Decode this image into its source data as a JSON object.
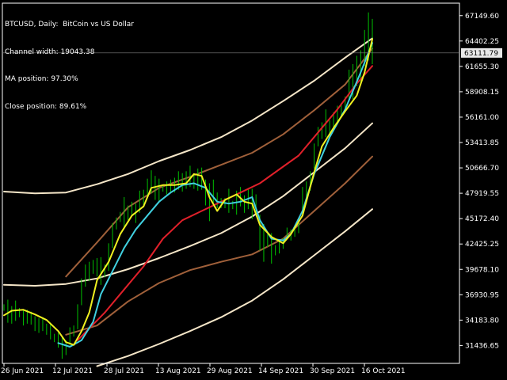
{
  "window": {
    "symbol_line": "BTCUSD, Daily:  BitCoin vs US Dollar",
    "channel_width": "Channel width: 19043.38",
    "ma_position": "MA position: 97.30%",
    "close_position": "Close position: 89.61%"
  },
  "colors": {
    "background": "#000000",
    "bars": "#00c000",
    "ma_red": "#e0202a",
    "smooth_cyan": "#40d0e0",
    "fast_yellow": "#f0f020",
    "outer_band": "#f5e6c8",
    "inner_band": "#a0603a"
  },
  "chart_data": {
    "type": "line",
    "title": "BTCUSD, Daily:  BitCoin vs US Dollar",
    "ylim": [
      29500,
      68500
    ],
    "price_ticks": [
      "67149.60",
      "64402.25",
      "61655.30",
      "58908.15",
      "56161.00",
      "53413.85",
      "50666.70",
      "47919.55",
      "45172.40",
      "42425.25",
      "39678.10",
      "36930.95",
      "34183.80",
      "31436.65"
    ],
    "x_labels": [
      "26 Jun 2021",
      "12 Jul 2021",
      "28 Jul 2021",
      "13 Aug 2021",
      "29 Aug 2021",
      "14 Sep 2021",
      "30 Sep 2021",
      "16 Oct 2021"
    ],
    "current_price": "63111.79",
    "bars": [
      [
        35900,
        35200
      ],
      [
        36400,
        33900
      ],
      [
        35700,
        33800
      ],
      [
        36300,
        34100
      ],
      [
        35500,
        34500
      ],
      [
        35200,
        33600
      ],
      [
        35300,
        33800
      ],
      [
        35100,
        33700
      ],
      [
        34600,
        33000
      ],
      [
        34400,
        32800
      ],
      [
        34500,
        33000
      ],
      [
        33800,
        32600
      ],
      [
        33900,
        32100
      ],
      [
        32700,
        31800
      ],
      [
        32800,
        31200
      ],
      [
        32400,
        30000
      ],
      [
        32000,
        30400
      ],
      [
        33400,
        31500
      ],
      [
        33600,
        32400
      ],
      [
        35900,
        33200
      ],
      [
        38700,
        35800
      ],
      [
        40200,
        37800
      ],
      [
        40500,
        38400
      ],
      [
        40700,
        39200
      ],
      [
        40900,
        38900
      ],
      [
        41000,
        38000
      ],
      [
        40200,
        38800
      ],
      [
        42500,
        39500
      ],
      [
        44700,
        42000
      ],
      [
        45300,
        44000
      ],
      [
        45900,
        44800
      ],
      [
        47500,
        44200
      ],
      [
        46600,
        45000
      ],
      [
        47000,
        45600
      ],
      [
        46800,
        44700
      ],
      [
        48200,
        45800
      ],
      [
        48300,
        46400
      ],
      [
        49500,
        47600
      ],
      [
        50400,
        47900
      ],
      [
        49800,
        47200
      ],
      [
        49500,
        47000
      ],
      [
        48700,
        48100
      ],
      [
        49200,
        47800
      ],
      [
        49400,
        48100
      ],
      [
        49600,
        48000
      ],
      [
        50300,
        48300
      ],
      [
        50100,
        48100
      ],
      [
        50300,
        48400
      ],
      [
        50900,
        48600
      ],
      [
        49900,
        48400
      ],
      [
        50600,
        48200
      ],
      [
        50700,
        48300
      ],
      [
        49400,
        46600
      ],
      [
        49000,
        44900
      ],
      [
        49400,
        46900
      ],
      [
        48000,
        46300
      ],
      [
        47400,
        46300
      ],
      [
        47400,
        46300
      ],
      [
        48400,
        45800
      ],
      [
        47100,
        46200
      ],
      [
        48200,
        45600
      ],
      [
        48600,
        46500
      ],
      [
        47700,
        45800
      ],
      [
        48400,
        46200
      ],
      [
        48400,
        45100
      ],
      [
        47800,
        45600
      ],
      [
        45600,
        41700
      ],
      [
        44600,
        40500
      ],
      [
        43500,
        42100
      ],
      [
        43600,
        40300
      ],
      [
        42300,
        41200
      ],
      [
        42700,
        41400
      ],
      [
        43100,
        41900
      ],
      [
        44200,
        43000
      ],
      [
        44000,
        42800
      ],
      [
        44400,
        43200
      ],
      [
        45100,
        43600
      ],
      [
        48600,
        45500
      ],
      [
        49200,
        47000
      ],
      [
        50300,
        48200
      ],
      [
        53300,
        50600
      ],
      [
        55100,
        53000
      ],
      [
        55600,
        53800
      ],
      [
        57000,
        54000
      ],
      [
        55800,
        54400
      ],
      [
        56700,
        55100
      ],
      [
        57400,
        55400
      ],
      [
        57700,
        56100
      ],
      [
        58400,
        56900
      ],
      [
        61300,
        58100
      ],
      [
        61900,
        58100
      ],
      [
        62800,
        59500
      ],
      [
        63400,
        60000
      ],
      [
        65600,
        61700
      ],
      [
        67500,
        62300
      ],
      [
        66800,
        61900
      ]
    ],
    "series": [
      {
        "name": "ma_red",
        "color": "#e0202a",
        "points": [
          [
            19,
            32000
          ],
          [
            26,
            35000
          ],
          [
            31,
            37500
          ],
          [
            36,
            40000
          ],
          [
            41,
            43000
          ],
          [
            46,
            45000
          ],
          [
            51,
            46000
          ],
          [
            56,
            47000
          ],
          [
            61,
            48000
          ],
          [
            66,
            49000
          ],
          [
            71,
            50500
          ],
          [
            76,
            52000
          ],
          [
            81,
            54500
          ],
          [
            86,
            57000
          ],
          [
            91,
            59800
          ],
          [
            95,
            61700
          ]
        ]
      },
      {
        "name": "smooth_cyan",
        "color": "#40d0e0",
        "points": [
          [
            14,
            31700
          ],
          [
            17,
            31300
          ],
          [
            20,
            32000
          ],
          [
            23,
            34000
          ],
          [
            25,
            37000
          ],
          [
            28,
            39500
          ],
          [
            31,
            42000
          ],
          [
            34,
            44000
          ],
          [
            37,
            45500
          ],
          [
            40,
            47000
          ],
          [
            43,
            48000
          ],
          [
            46,
            48800
          ],
          [
            49,
            49000
          ],
          [
            52,
            48500
          ],
          [
            55,
            47000
          ],
          [
            58,
            46800
          ],
          [
            61,
            47000
          ],
          [
            64,
            47500
          ],
          [
            66,
            45000
          ],
          [
            69,
            43000
          ],
          [
            72,
            42800
          ],
          [
            74,
            43500
          ],
          [
            77,
            46000
          ],
          [
            80,
            50000
          ],
          [
            84,
            54000
          ],
          [
            88,
            57000
          ],
          [
            92,
            61000
          ],
          [
            95,
            64200
          ]
        ]
      },
      {
        "name": "fast_yellow",
        "color": "#f0f020",
        "points": [
          [
            0,
            34700
          ],
          [
            2,
            35200
          ],
          [
            5,
            35300
          ],
          [
            8,
            34800
          ],
          [
            11,
            34200
          ],
          [
            14,
            33000
          ],
          [
            16,
            31800
          ],
          [
            18,
            31500
          ],
          [
            20,
            33000
          ],
          [
            22,
            35000
          ],
          [
            24,
            38500
          ],
          [
            27,
            40500
          ],
          [
            30,
            43500
          ],
          [
            33,
            45500
          ],
          [
            36,
            46500
          ],
          [
            38,
            48500
          ],
          [
            41,
            48800
          ],
          [
            44,
            48800
          ],
          [
            47,
            49000
          ],
          [
            49,
            50000
          ],
          [
            51,
            49800
          ],
          [
            53,
            47500
          ],
          [
            55,
            46000
          ],
          [
            57,
            47200
          ],
          [
            60,
            47800
          ],
          [
            62,
            47000
          ],
          [
            64,
            46800
          ],
          [
            66,
            44500
          ],
          [
            69,
            43200
          ],
          [
            72,
            42500
          ],
          [
            74,
            43500
          ],
          [
            77,
            45500
          ],
          [
            80,
            50200
          ],
          [
            82,
            53000
          ],
          [
            85,
            55000
          ],
          [
            88,
            56800
          ],
          [
            91,
            58500
          ],
          [
            93,
            61000
          ],
          [
            95,
            64600
          ]
        ]
      },
      {
        "name": "outer_upper",
        "color": "#f5e6c8",
        "points": [
          [
            0,
            48100
          ],
          [
            8,
            47900
          ],
          [
            16,
            48000
          ],
          [
            24,
            48900
          ],
          [
            32,
            50000
          ],
          [
            40,
            51400
          ],
          [
            48,
            52600
          ],
          [
            56,
            54000
          ],
          [
            64,
            55800
          ],
          [
            72,
            57900
          ],
          [
            80,
            60100
          ],
          [
            88,
            62600
          ],
          [
            95,
            64700
          ]
        ]
      },
      {
        "name": "outer_lower",
        "color": "#f5e6c8",
        "points": [
          [
            0,
            38000
          ],
          [
            8,
            37900
          ],
          [
            16,
            38100
          ],
          [
            24,
            38700
          ],
          [
            32,
            39700
          ],
          [
            40,
            40900
          ],
          [
            48,
            42200
          ],
          [
            56,
            43600
          ],
          [
            64,
            45400
          ],
          [
            72,
            47600
          ],
          [
            80,
            50200
          ],
          [
            88,
            52800
          ],
          [
            95,
            55500
          ]
        ]
      },
      {
        "name": "second_lower",
        "color": "#f5e6c8",
        "points": [
          [
            24,
            29200
          ],
          [
            32,
            30300
          ],
          [
            40,
            31600
          ],
          [
            48,
            33000
          ],
          [
            56,
            34500
          ],
          [
            64,
            36300
          ],
          [
            72,
            38600
          ],
          [
            80,
            41200
          ],
          [
            88,
            43800
          ],
          [
            95,
            46200
          ]
        ]
      },
      {
        "name": "inner_upper",
        "color": "#a0603a",
        "points": [
          [
            16,
            38900
          ],
          [
            24,
            42600
          ],
          [
            32,
            46400
          ],
          [
            40,
            48500
          ],
          [
            48,
            49700
          ],
          [
            56,
            51000
          ],
          [
            64,
            52300
          ],
          [
            72,
            54300
          ],
          [
            80,
            56900
          ],
          [
            88,
            59700
          ],
          [
            95,
            63600
          ]
        ]
      },
      {
        "name": "inner_lower",
        "color": "#a0603a",
        "points": [
          [
            16,
            32600
          ],
          [
            24,
            33600
          ],
          [
            32,
            36200
          ],
          [
            40,
            38200
          ],
          [
            48,
            39600
          ],
          [
            56,
            40500
          ],
          [
            64,
            41300
          ],
          [
            72,
            43000
          ],
          [
            80,
            46000
          ],
          [
            88,
            49000
          ],
          [
            95,
            51900
          ]
        ]
      }
    ]
  }
}
